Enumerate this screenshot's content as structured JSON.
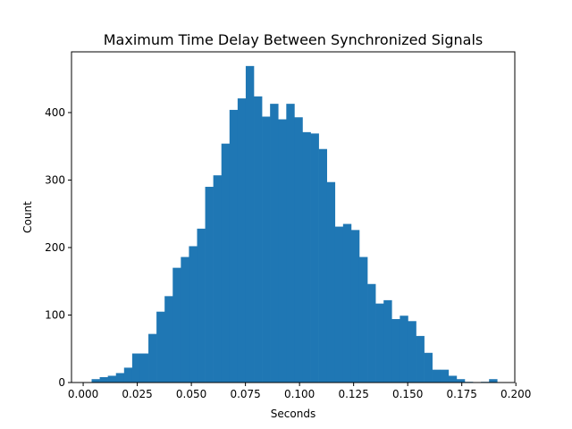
{
  "chart_data": {
    "type": "bar",
    "title": "Maximum Time Delay Between Synchronized Signals",
    "xlabel": "Seconds",
    "ylabel": "Count",
    "xlim": [
      -0.0054,
      0.1995
    ],
    "ylim": [
      0,
      490
    ],
    "xticks": [
      0.0,
      0.025,
      0.05,
      0.075,
      0.1,
      0.125,
      0.15,
      0.175,
      0.2
    ],
    "xtick_labels": [
      "0.000",
      "0.025",
      "0.050",
      "0.075",
      "0.100",
      "0.125",
      "0.150",
      "0.175",
      "0.200"
    ],
    "yticks": [
      0,
      100,
      200,
      300,
      400
    ],
    "ytick_labels": [
      "0",
      "100",
      "200",
      "300",
      "400"
    ],
    "bin_start": 0.0039,
    "bin_width": 0.003749,
    "counts": [
      5,
      8,
      10,
      14,
      22,
      43,
      43,
      72,
      105,
      128,
      170,
      186,
      202,
      228,
      290,
      307,
      354,
      404,
      421,
      469,
      424,
      394,
      413,
      390,
      413,
      393,
      371,
      369,
      346,
      297,
      231,
      235,
      226,
      186,
      146,
      117,
      122,
      94,
      99,
      91,
      69,
      44,
      19,
      19,
      10,
      5,
      1,
      0,
      1,
      5
    ],
    "bar_color": "#1f77b4",
    "grid": false,
    "legend": "none"
  }
}
